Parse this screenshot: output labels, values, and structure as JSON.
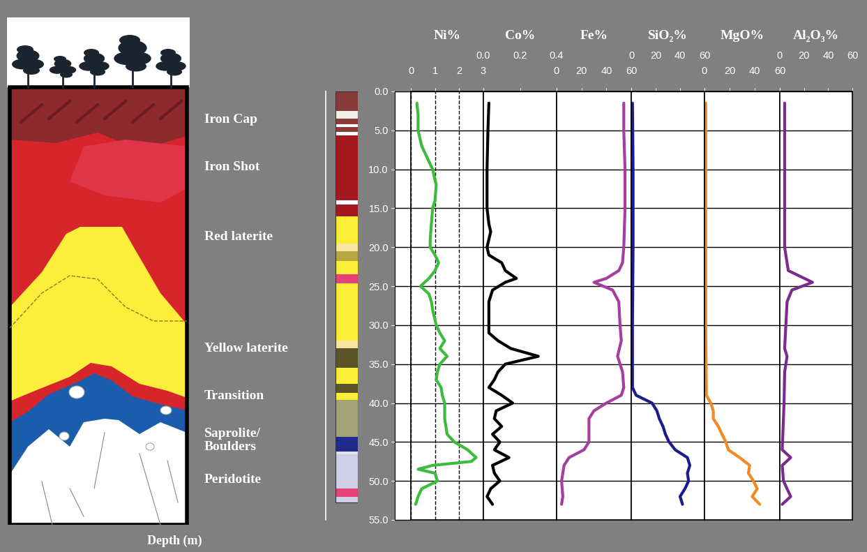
{
  "depth_axis": {
    "label": "Depth (m)",
    "ylim": [
      55,
      0
    ],
    "yticks": [
      {
        "value": 0,
        "label": "0.0"
      },
      {
        "value": 5,
        "label": "5.0"
      },
      {
        "value": 10,
        "label": "10.0"
      },
      {
        "value": 15,
        "label": "15.0"
      },
      {
        "value": 20,
        "label": "20.0"
      },
      {
        "value": 25,
        "label": "25.0"
      },
      {
        "value": 30,
        "label": "30.0"
      },
      {
        "value": 35,
        "label": "35.0"
      },
      {
        "value": 40,
        "label": "40.0"
      },
      {
        "value": 45,
        "label": "45.0"
      },
      {
        "value": 50,
        "label": "50.0"
      },
      {
        "value": 55,
        "label": "55.0"
      }
    ],
    "grid": true
  },
  "zones": [
    "Iron Cap",
    "Iron Shot",
    "Red laterite",
    "Yellow laterite",
    "Transition",
    "Saprolite/\nBoulders",
    "Peridotite"
  ],
  "column": [
    {
      "top": 0,
      "bottom": 2.5,
      "color": "#8b3a3a"
    },
    {
      "top": 2.5,
      "bottom": 3.5,
      "color": "#f2efe8"
    },
    {
      "top": 3.5,
      "bottom": 4.2,
      "color": "#8b3a3a"
    },
    {
      "top": 4.2,
      "bottom": 4.6,
      "color": "#ffffff"
    },
    {
      "top": 4.6,
      "bottom": 5.2,
      "color": "#8b3a3a"
    },
    {
      "top": 5.2,
      "bottom": 5.6,
      "color": "#ffffff"
    },
    {
      "top": 5.6,
      "bottom": 14,
      "color": "#a3191f"
    },
    {
      "top": 14,
      "bottom": 14.5,
      "color": "#ffffff"
    },
    {
      "top": 14.5,
      "bottom": 16,
      "color": "#a3191f"
    },
    {
      "top": 16,
      "bottom": 19.5,
      "color": "#fbee36"
    },
    {
      "top": 19.5,
      "bottom": 20.5,
      "color": "#f5e6a0"
    },
    {
      "top": 20.5,
      "bottom": 21.8,
      "color": "#b5a642"
    },
    {
      "top": 21.8,
      "bottom": 23.5,
      "color": "#fbee36"
    },
    {
      "top": 23.5,
      "bottom": 24.6,
      "color": "#e6427a"
    },
    {
      "top": 24.6,
      "bottom": 32,
      "color": "#fbee36"
    },
    {
      "top": 32,
      "bottom": 33,
      "color": "#f5e6a0"
    },
    {
      "top": 33,
      "bottom": 35.5,
      "color": "#5a5428"
    },
    {
      "top": 35.5,
      "bottom": 37.5,
      "color": "#fbee36"
    },
    {
      "top": 37.5,
      "bottom": 38.7,
      "color": "#5a5428"
    },
    {
      "top": 38.7,
      "bottom": 39.6,
      "color": "#fbee36"
    },
    {
      "top": 39.6,
      "bottom": 44.3,
      "color": "#a3a37a"
    },
    {
      "top": 44.3,
      "bottom": 46.2,
      "color": "#1f2a8a"
    },
    {
      "top": 46.2,
      "bottom": 46.6,
      "color": "#e0e0ee"
    },
    {
      "top": 46.6,
      "bottom": 51,
      "color": "#cfcfe6"
    },
    {
      "top": 51,
      "bottom": 52,
      "color": "#e6427a"
    },
    {
      "top": 52,
      "bottom": 52.8,
      "color": "#cfcfe6"
    }
  ],
  "chart_data": [
    {
      "type": "line",
      "title": "Ni%",
      "color": "#3dbb3d",
      "xlim": [
        0,
        3
      ],
      "xticks": [
        0,
        1,
        2,
        3
      ],
      "grid": true,
      "tick_labels": "x",
      "y": [
        1.5,
        3,
        5,
        7,
        9,
        10,
        12,
        14,
        15,
        17,
        19,
        20,
        21,
        22,
        23,
        24,
        25,
        26,
        27,
        28,
        30,
        31,
        32,
        33,
        34,
        35,
        36,
        37,
        38,
        39,
        40,
        42,
        44,
        45,
        46,
        47,
        47.5,
        48,
        48.5,
        49,
        50,
        51,
        52,
        53
      ],
      "values": [
        0.25,
        0.3,
        0.3,
        0.45,
        0.75,
        0.9,
        1.05,
        1.0,
        0.9,
        0.85,
        0.8,
        0.8,
        1.0,
        1.15,
        1.0,
        0.75,
        0.4,
        0.75,
        0.85,
        0.9,
        1.05,
        1.2,
        1.4,
        1.2,
        1.5,
        1.2,
        1.1,
        1.05,
        1.25,
        1.3,
        1.4,
        1.4,
        1.5,
        1.8,
        2.35,
        2.7,
        2.5,
        0.9,
        0.3,
        1.0,
        1.1,
        0.45,
        0.3,
        0.2
      ]
    },
    {
      "type": "line",
      "title": "Co%",
      "color": "#000000",
      "xlim": [
        0,
        0.4
      ],
      "xticks": [
        {
          "value": 0,
          "label": "0.0"
        },
        0.2,
        0.4
      ],
      "grid": false,
      "tick_labels": "x",
      "y": [
        1.5,
        5,
        10,
        15,
        17,
        18,
        19,
        20,
        21,
        22,
        23,
        24,
        24.5,
        25.5,
        27,
        30,
        31,
        32,
        33,
        34,
        35,
        36,
        37,
        38,
        39,
        40,
        41,
        42,
        43,
        44,
        45,
        46,
        47,
        48,
        49,
        50,
        51,
        52,
        53
      ],
      "values": [
        0.03,
        0.025,
        0.02,
        0.02,
        0.03,
        0.04,
        0.03,
        0.02,
        0.03,
        0.1,
        0.12,
        0.18,
        0.12,
        0.05,
        0.03,
        0.03,
        0.03,
        0.08,
        0.15,
        0.3,
        0.12,
        0.08,
        0.06,
        0.03,
        0.1,
        0.16,
        0.07,
        0.06,
        0.1,
        0.05,
        0.09,
        0.06,
        0.14,
        0.05,
        0.06,
        0.09,
        0.04,
        0.02,
        0.05
      ]
    },
    {
      "type": "line",
      "title": "Fe%",
      "color": "#a43fa0",
      "xlim": [
        0,
        60
      ],
      "xticks": [
        0,
        20,
        40,
        60
      ],
      "grid": false,
      "tick_labels": "x",
      "y": [
        1.5,
        5,
        10,
        15,
        20,
        22,
        23,
        24,
        24.5,
        25.5,
        27,
        30,
        32,
        34,
        36,
        38,
        39,
        40,
        41,
        42,
        44,
        45,
        46,
        47,
        48,
        50,
        52,
        53
      ],
      "values": [
        54,
        54,
        55,
        55,
        54,
        53,
        50,
        40,
        30,
        45,
        50,
        51,
        52,
        49,
        53,
        54,
        52,
        40,
        30,
        26,
        26,
        26,
        22,
        10,
        6,
        4,
        5,
        4
      ]
    },
    {
      "type": "line",
      "title": "SiO₂%",
      "color": "#1c1c8c",
      "xlim": [
        0,
        60
      ],
      "xticks": [
        0,
        20,
        40,
        60
      ],
      "grid": false,
      "tick_labels": "x",
      "y": [
        1.5,
        10,
        20,
        30,
        38,
        39,
        40,
        41,
        42,
        43,
        44,
        45,
        46,
        47,
        48,
        49,
        50,
        51,
        52,
        53
      ],
      "values": [
        1,
        1.5,
        1.5,
        1,
        1,
        4,
        17,
        21,
        23,
        26,
        28,
        31,
        36,
        46,
        48,
        46,
        47,
        44,
        40,
        42
      ]
    },
    {
      "type": "line",
      "title": "MgO%",
      "color": "#f08a24",
      "xlim": [
        0,
        60
      ],
      "xticks": [
        0,
        20,
        40,
        60
      ],
      "grid": false,
      "tick_labels": "x",
      "y": [
        1.5,
        10,
        20,
        30,
        39,
        40,
        41,
        42,
        43,
        44,
        45,
        46,
        47,
        48,
        49,
        50,
        51,
        52,
        53
      ],
      "values": [
        1,
        1,
        1,
        1,
        1.5,
        5,
        7,
        7,
        11,
        14,
        17,
        19,
        28,
        36,
        35,
        39,
        42,
        38,
        44
      ]
    },
    {
      "type": "line",
      "title": "Al₂O₃%",
      "color": "#7b2a8e",
      "xlim": [
        0,
        60
      ],
      "xticks": [
        0,
        20,
        40,
        60
      ],
      "grid": false,
      "tick_labels": "x",
      "y": [
        1.5,
        10,
        20,
        23,
        24.5,
        25.5,
        27,
        30,
        33,
        34,
        36,
        40,
        46,
        47,
        48,
        50,
        52,
        53
      ],
      "values": [
        4,
        4,
        4,
        7,
        27,
        10,
        6,
        5,
        4,
        6,
        4,
        3.5,
        2,
        9,
        2,
        3,
        9,
        2
      ]
    }
  ]
}
